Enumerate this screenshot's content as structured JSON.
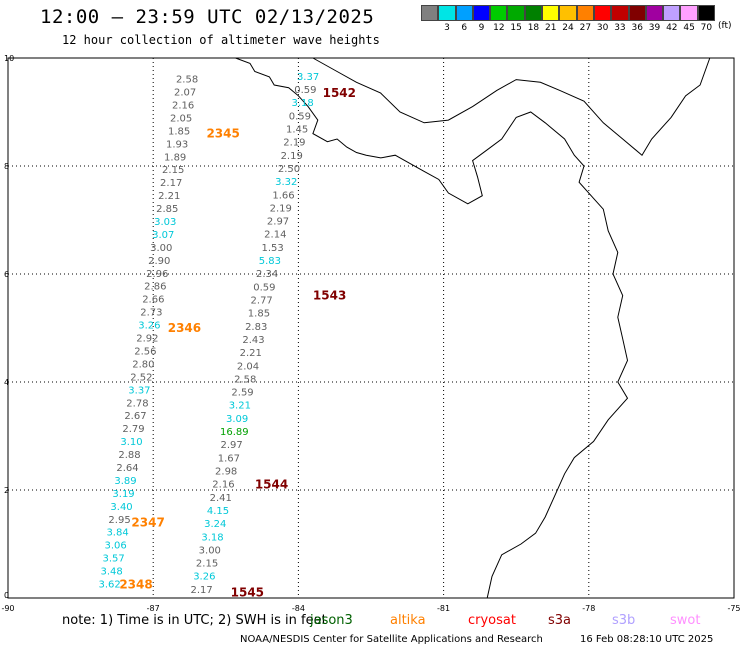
{
  "header": {
    "title": "12:00 – 23:59 UTC 02/13/2025",
    "subtitle": "12 hour collection of altimeter wave heights"
  },
  "legend": {
    "labels": [
      "3",
      "6",
      "9",
      "12",
      "15",
      "18",
      "21",
      "24",
      "27",
      "30",
      "33",
      "36",
      "39",
      "42",
      "45",
      "70"
    ],
    "colors": [
      "#808080",
      "#00e5e5",
      "#00a0ff",
      "#0000ff",
      "#00cc00",
      "#00aa00",
      "#008000",
      "#ffff00",
      "#ffc000",
      "#ff8000",
      "#ff0000",
      "#c00000",
      "#800000",
      "#a000a0",
      "#c0a0ff",
      "#ffa0ff",
      "#000000"
    ],
    "unit": "(ft)"
  },
  "map": {
    "lat_ticks": [
      "0",
      "2",
      "4",
      "6",
      "8",
      "10"
    ],
    "lon_ticks": [
      "-90",
      "-87",
      "-84",
      "-81",
      "-78",
      "-75"
    ],
    "lon_range": [
      -90,
      -75
    ],
    "lat_range": [
      0,
      10
    ],
    "pass_labels": [
      {
        "text": "1542",
        "color": "#800000",
        "lon": -83.5,
        "lat": 9.35
      },
      {
        "text": "2345",
        "color": "#ff8000",
        "lon": -85.9,
        "lat": 8.6
      },
      {
        "text": "1543",
        "color": "#800000",
        "lon": -83.7,
        "lat": 5.6
      },
      {
        "text": "2346",
        "color": "#ff8000",
        "lon": -86.7,
        "lat": 5.0
      },
      {
        "text": "1544",
        "color": "#800000",
        "lon": -84.9,
        "lat": 2.1
      },
      {
        "text": "2347",
        "color": "#ff8000",
        "lon": -87.45,
        "lat": 1.4
      },
      {
        "text": "2348",
        "color": "#ff8000",
        "lon": -87.7,
        "lat": 0.25
      },
      {
        "text": "1545",
        "color": "#800000",
        "lon": -85.4,
        "lat": 0.1
      }
    ],
    "tracks": [
      {
        "lon0": -86.3,
        "lat0": 9.6,
        "lon1": -87.9,
        "lat1": 0.25,
        "values": [
          {
            "v": "2.58",
            "c": "#606060"
          },
          {
            "v": "2.07",
            "c": "#606060"
          },
          {
            "v": "2.16",
            "c": "#606060"
          },
          {
            "v": "2.05",
            "c": "#606060"
          },
          {
            "v": "1.85",
            "c": "#606060"
          },
          {
            "v": "1.93",
            "c": "#606060"
          },
          {
            "v": "1.89",
            "c": "#606060"
          },
          {
            "v": "2.15",
            "c": "#606060"
          },
          {
            "v": "2.17",
            "c": "#606060"
          },
          {
            "v": "2.21",
            "c": "#606060"
          },
          {
            "v": "2.85",
            "c": "#606060"
          },
          {
            "v": "3.03",
            "c": "#00c8d8"
          },
          {
            "v": "3.07",
            "c": "#00c8d8"
          },
          {
            "v": "3.00",
            "c": "#606060"
          },
          {
            "v": "2.90",
            "c": "#606060"
          },
          {
            "v": "2.96",
            "c": "#606060"
          },
          {
            "v": "2.86",
            "c": "#606060"
          },
          {
            "v": "2.66",
            "c": "#606060"
          },
          {
            "v": "2.73",
            "c": "#606060"
          },
          {
            "v": "3.26",
            "c": "#00c8d8"
          },
          {
            "v": "2.92",
            "c": "#606060"
          },
          {
            "v": "2.56",
            "c": "#606060"
          },
          {
            "v": "2.80",
            "c": "#606060"
          },
          {
            "v": "2.52",
            "c": "#606060"
          },
          {
            "v": "3.37",
            "c": "#00c8d8"
          },
          {
            "v": "2.78",
            "c": "#606060"
          },
          {
            "v": "2.67",
            "c": "#606060"
          },
          {
            "v": "2.79",
            "c": "#606060"
          },
          {
            "v": "3.10",
            "c": "#00c8d8"
          },
          {
            "v": "2.88",
            "c": "#606060"
          },
          {
            "v": "2.64",
            "c": "#606060"
          },
          {
            "v": "3.89",
            "c": "#00c8d8"
          },
          {
            "v": "3.19",
            "c": "#00c8d8"
          },
          {
            "v": "3.40",
            "c": "#00c8d8"
          },
          {
            "v": "2.95",
            "c": "#606060"
          },
          {
            "v": "3.84",
            "c": "#00c8d8"
          },
          {
            "v": "3.06",
            "c": "#00c8d8"
          },
          {
            "v": "3.57",
            "c": "#00c8d8"
          },
          {
            "v": "3.48",
            "c": "#00c8d8"
          },
          {
            "v": "3.62",
            "c": "#00c8d8"
          }
        ]
      },
      {
        "lon0": -83.8,
        "lat0": 9.65,
        "lon1": -86.0,
        "lat1": 0.15,
        "values": [
          {
            "v": "3.37",
            "c": "#00c8d8"
          },
          {
            "v": "0.59",
            "c": "#606060"
          },
          {
            "v": "3.18",
            "c": "#00c8d8"
          },
          {
            "v": "0.59",
            "c": "#606060"
          },
          {
            "v": "1.45",
            "c": "#606060"
          },
          {
            "v": "2.19",
            "c": "#606060"
          },
          {
            "v": "2.19",
            "c": "#606060"
          },
          {
            "v": "2.50",
            "c": "#606060"
          },
          {
            "v": "3.32",
            "c": "#00c8d8"
          },
          {
            "v": "1.66",
            "c": "#606060"
          },
          {
            "v": "2.19",
            "c": "#606060"
          },
          {
            "v": "2.97",
            "c": "#606060"
          },
          {
            "v": "2.14",
            "c": "#606060"
          },
          {
            "v": "1.53",
            "c": "#606060"
          },
          {
            "v": "5.83",
            "c": "#00c8d8"
          },
          {
            "v": "2.34",
            "c": "#606060"
          },
          {
            "v": "0.59",
            "c": "#606060"
          },
          {
            "v": "2.77",
            "c": "#606060"
          },
          {
            "v": "1.85",
            "c": "#606060"
          },
          {
            "v": "2.83",
            "c": "#606060"
          },
          {
            "v": "2.43",
            "c": "#606060"
          },
          {
            "v": "2.21",
            "c": "#606060"
          },
          {
            "v": "2.04",
            "c": "#606060"
          },
          {
            "v": "2.58",
            "c": "#606060"
          },
          {
            "v": "2.59",
            "c": "#606060"
          },
          {
            "v": "3.21",
            "c": "#00c8d8"
          },
          {
            "v": "3.09",
            "c": "#00c8d8"
          },
          {
            "v": "16.89",
            "c": "#00a000"
          },
          {
            "v": "2.97",
            "c": "#606060"
          },
          {
            "v": "1.67",
            "c": "#606060"
          },
          {
            "v": "2.98",
            "c": "#606060"
          },
          {
            "v": "2.16",
            "c": "#606060"
          },
          {
            "v": "2.41",
            "c": "#606060"
          },
          {
            "v": "4.15",
            "c": "#00c8d8"
          },
          {
            "v": "3.24",
            "c": "#00c8d8"
          },
          {
            "v": "3.18",
            "c": "#00c8d8"
          },
          {
            "v": "3.00",
            "c": "#606060"
          },
          {
            "v": "2.15",
            "c": "#606060"
          },
          {
            "v": "3.26",
            "c": "#00c8d8"
          },
          {
            "v": "2.17",
            "c": "#606060"
          }
        ]
      }
    ]
  },
  "footer": {
    "note": "note:  1) Time is in UTC;  2) SWH is in feet",
    "satellites": [
      {
        "name": "jason3",
        "color": "#006000"
      },
      {
        "name": "altika",
        "color": "#ff8000"
      },
      {
        "name": "cryosat",
        "color": "#ff0000"
      },
      {
        "name": "s3a",
        "color": "#800000"
      },
      {
        "name": "s3b",
        "color": "#b0a0ff"
      },
      {
        "name": "swot",
        "color": "#ff90ff"
      }
    ],
    "credit": "NOAA/NESDIS Center for Satellite Applications and Research",
    "timestamp": "16 Feb 08:28:10 UTC 2025"
  }
}
